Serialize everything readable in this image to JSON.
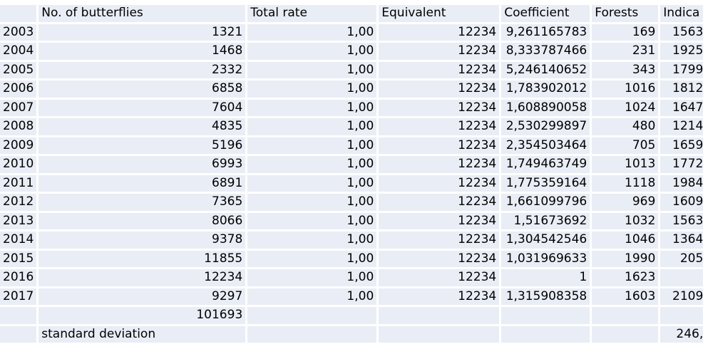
{
  "columns": [
    "",
    "No. of butterflies",
    "Total rate",
    "Equivalent",
    "Coefficient",
    "Forests",
    "Indica"
  ],
  "rows": [
    [
      "2003",
      "1321",
      "1,00",
      "12234",
      "9,261165783",
      "169",
      "1563"
    ],
    [
      "2004",
      "1468",
      "1,00",
      "12234",
      "8,333787466",
      "231",
      "1925"
    ],
    [
      "2005",
      "2332",
      "1,00",
      "12234",
      "5,246140652",
      "343",
      "1799"
    ],
    [
      "2006",
      "6858",
      "1,00",
      "12234",
      "1,783902012",
      "1016",
      "1812"
    ],
    [
      "2007",
      "7604",
      "1,00",
      "12234",
      "1,608890058",
      "1024",
      "1647"
    ],
    [
      "2008",
      "4835",
      "1,00",
      "12234",
      "2,530299897",
      "480",
      "1214"
    ],
    [
      "2009",
      "5196",
      "1,00",
      "12234",
      "2,354503464",
      "705",
      "1659"
    ],
    [
      "2010",
      "6993",
      "1,00",
      "12234",
      "1,749463749",
      "1013",
      "1772"
    ],
    [
      "2011",
      "6891",
      "1,00",
      "12234",
      "1,775359164",
      "1118",
      "1984"
    ],
    [
      "2012",
      "7365",
      "1,00",
      "12234",
      "1,661099796",
      "969",
      "1609"
    ],
    [
      "2013",
      "8066",
      "1,00",
      "12234",
      "1,51673692",
      "1032",
      "1563"
    ],
    [
      "2014",
      "9378",
      "1,00",
      "12234",
      "1,304542546",
      "1046",
      "1364"
    ],
    [
      "2015",
      "11855",
      "1,00",
      "12234",
      "1,031969633",
      "1990",
      "205"
    ],
    [
      "2016",
      "12234",
      "1,00",
      "12234",
      "1",
      "1623",
      ""
    ],
    [
      "2017",
      "9297",
      "1,00",
      "12234",
      "1,315908358",
      "1603",
      "2109"
    ]
  ],
  "total_row": [
    "",
    "101693",
    "",
    "",
    "",
    "",
    ""
  ],
  "sd_row": [
    "",
    "standard deviation",
    "",
    "",
    "",
    "",
    "246,"
  ]
}
